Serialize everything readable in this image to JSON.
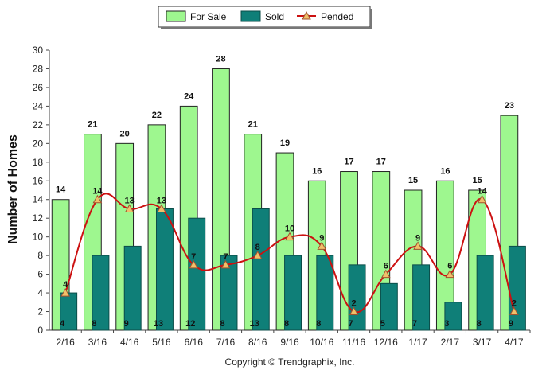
{
  "colors": {
    "for_sale_fill": "#9ef78f",
    "for_sale_stroke": "#222222",
    "sold_fill": "#0f7f78",
    "sold_stroke": "#0b4d49",
    "pended_line": "#cc1111",
    "pended_marker_fill": "#f0c06a",
    "pended_marker_stroke": "#a0522d"
  },
  "legend": {
    "for_sale": "For Sale",
    "sold": "Sold",
    "pended": "Pended"
  },
  "credit": "Copyright © Trendgraphix, Inc.",
  "chart_data": {
    "type": "bar",
    "title": "",
    "xlabel": "",
    "ylabel": "Number of Homes",
    "ylim": [
      0,
      30
    ],
    "ytick_step": 2,
    "grid": false,
    "legend_position": "top-center",
    "categories": [
      "2/16",
      "3/16",
      "4/16",
      "5/16",
      "6/16",
      "7/16",
      "8/16",
      "9/16",
      "10/16",
      "11/16",
      "12/16",
      "1/17",
      "2/17",
      "3/17",
      "4/17"
    ],
    "series": [
      {
        "name": "For Sale",
        "type": "bar",
        "values": [
          14,
          21,
          20,
          22,
          24,
          28,
          21,
          19,
          16,
          17,
          17,
          15,
          16,
          15,
          23
        ]
      },
      {
        "name": "Sold",
        "type": "bar",
        "values": [
          4,
          8,
          9,
          13,
          12,
          8,
          13,
          8,
          8,
          7,
          5,
          7,
          3,
          8,
          9
        ]
      },
      {
        "name": "Pended",
        "type": "line",
        "values": [
          4,
          14,
          13,
          13,
          7,
          7,
          8,
          10,
          9,
          2,
          6,
          9,
          6,
          14,
          2
        ]
      }
    ]
  }
}
